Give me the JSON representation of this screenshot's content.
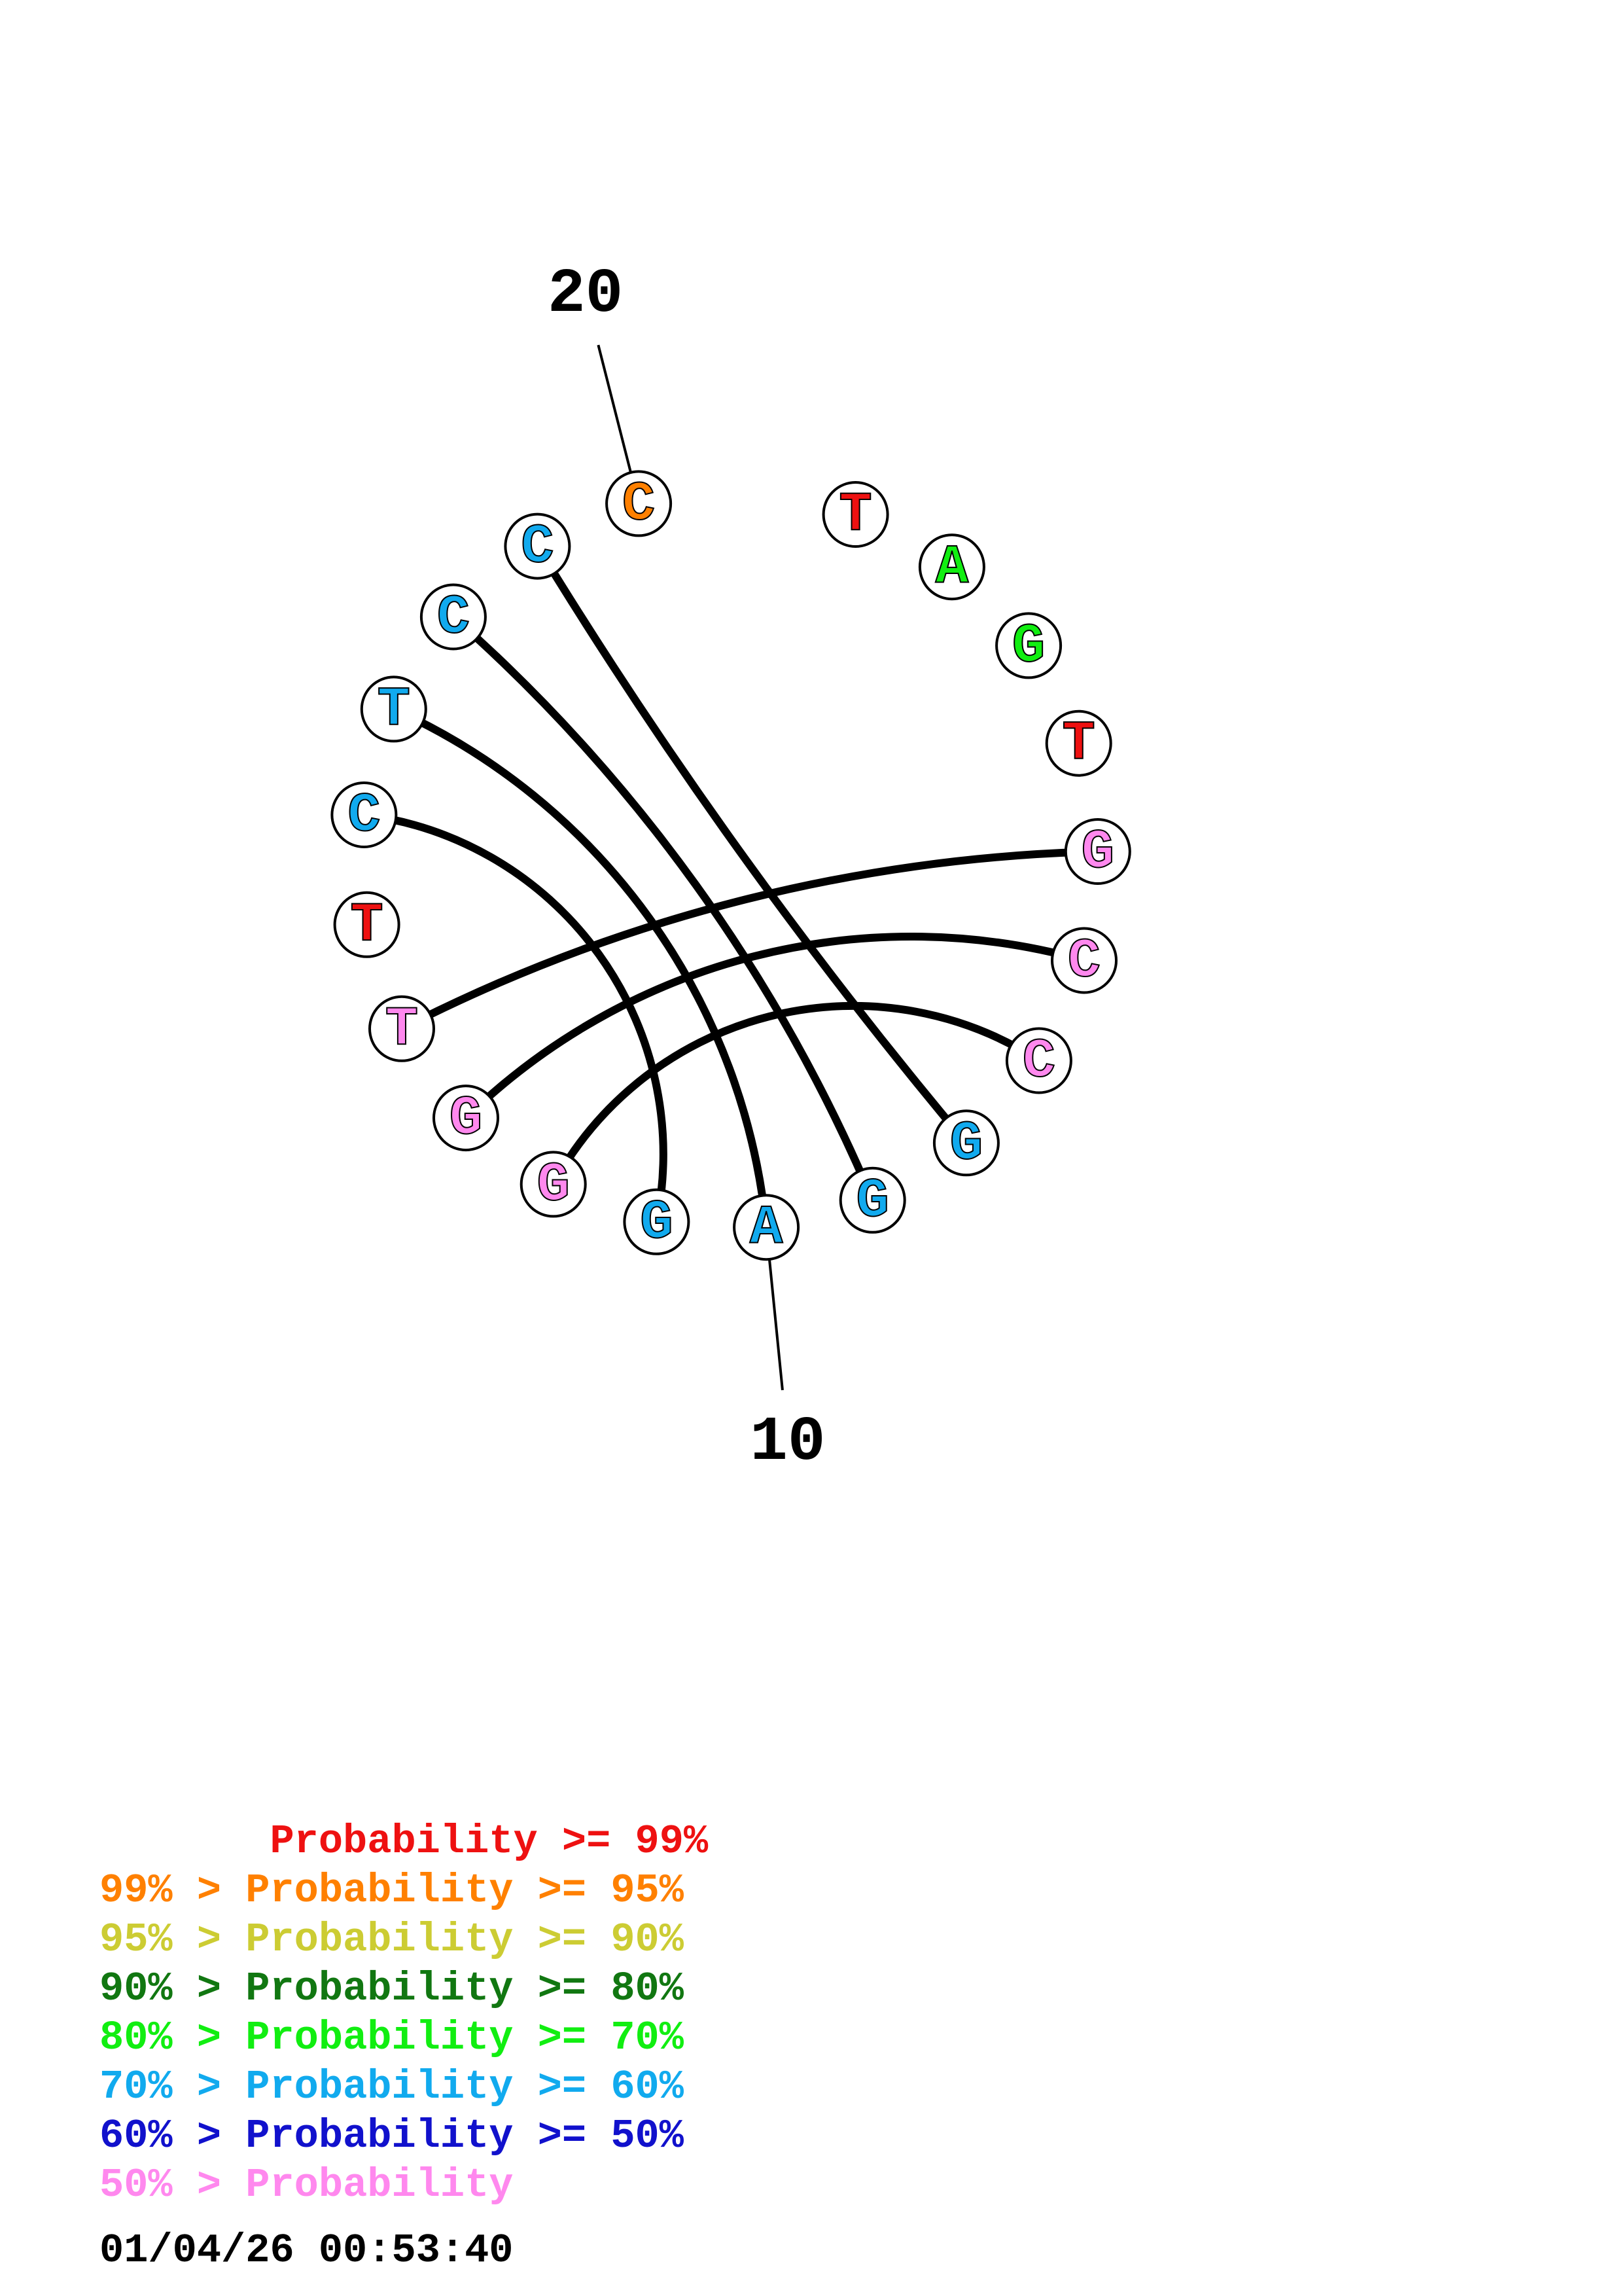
{
  "colors": {
    "p99": "#ee1111",
    "p95": "#ff8000",
    "p90": "#cccc33",
    "p80": "#117711",
    "p70": "#11ee11",
    "p60": "#11aaee",
    "p50": "#1111cc",
    "plt50": "#ff88ee",
    "outline": "#000000"
  },
  "sequence": [
    {
      "pos": 1,
      "base": "T",
      "color": "p99"
    },
    {
      "pos": 2,
      "base": "A",
      "color": "p70"
    },
    {
      "pos": 3,
      "base": "G",
      "color": "p70"
    },
    {
      "pos": 4,
      "base": "T",
      "color": "p99"
    },
    {
      "pos": 5,
      "base": "G",
      "color": "plt50"
    },
    {
      "pos": 6,
      "base": "C",
      "color": "plt50"
    },
    {
      "pos": 7,
      "base": "C",
      "color": "plt50"
    },
    {
      "pos": 8,
      "base": "G",
      "color": "p60"
    },
    {
      "pos": 9,
      "base": "G",
      "color": "p60"
    },
    {
      "pos": 10,
      "base": "A",
      "color": "p60"
    },
    {
      "pos": 11,
      "base": "G",
      "color": "p60"
    },
    {
      "pos": 12,
      "base": "G",
      "color": "plt50"
    },
    {
      "pos": 13,
      "base": "G",
      "color": "plt50"
    },
    {
      "pos": 14,
      "base": "T",
      "color": "plt50"
    },
    {
      "pos": 15,
      "base": "T",
      "color": "p99"
    },
    {
      "pos": 16,
      "base": "C",
      "color": "p60"
    },
    {
      "pos": 17,
      "base": "T",
      "color": "p60"
    },
    {
      "pos": 18,
      "base": "C",
      "color": "p60"
    },
    {
      "pos": 19,
      "base": "C",
      "color": "p60"
    },
    {
      "pos": 20,
      "base": "C",
      "color": "p95"
    }
  ],
  "pairs": [
    [
      5,
      14
    ],
    [
      6,
      13
    ],
    [
      7,
      12
    ],
    [
      8,
      19
    ],
    [
      9,
      18
    ],
    [
      10,
      17
    ],
    [
      11,
      16
    ]
  ],
  "index_labels": [
    {
      "pos": 20,
      "text": "20"
    },
    {
      "pos": 10,
      "text": "10"
    }
  ],
  "legend": [
    {
      "text": "       Probability >= 99%",
      "color": "p99"
    },
    {
      "text": "99% > Probability >= 95%",
      "color": "p95"
    },
    {
      "text": "95% > Probability >= 90%",
      "color": "p90"
    },
    {
      "text": "90% > Probability >= 80%",
      "color": "p80"
    },
    {
      "text": "80% > Probability >= 70%",
      "color": "p70"
    },
    {
      "text": "70% > Probability >= 60%",
      "color": "p60"
    },
    {
      "text": "60% > Probability >= 50%",
      "color": "p50"
    },
    {
      "text": "50% > Probability",
      "color": "plt50"
    }
  ],
  "timestamp": "01/04/26 00:53:40"
}
